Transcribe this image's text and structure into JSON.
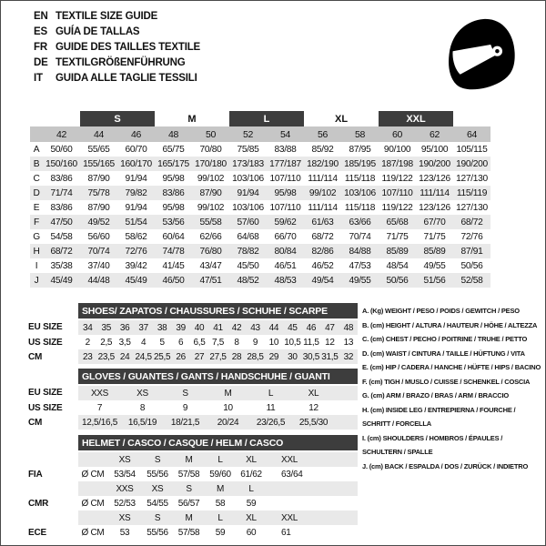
{
  "header": {
    "languages": [
      {
        "code": "EN",
        "text": "TEXTILE SIZE GUIDE"
      },
      {
        "code": "ES",
        "text": "GUÍA DE TALLAS"
      },
      {
        "code": "FR",
        "text": "GUIDE DES TAILLES TEXTILE"
      },
      {
        "code": "DE",
        "text": "TEXTILGRÖßENFÜHRUNG"
      },
      {
        "code": "IT",
        "text": "GUIDA ALLE TAGLIE TESSILI"
      }
    ],
    "helmet_icon": "full-face-racing-helmet"
  },
  "colors": {
    "dark_bar": "#3d3d3d",
    "number_band": "#c6c6c6",
    "row_shade": "#e9e9e9"
  },
  "main_table": {
    "size_groups": [
      "S",
      "M",
      "L",
      "XL",
      "XXL"
    ],
    "columns": [
      "42",
      "44",
      "46",
      "48",
      "50",
      "52",
      "54",
      "56",
      "58",
      "60",
      "62",
      "64"
    ],
    "rows": [
      {
        "label": "A",
        "shade": false,
        "values": [
          "50/60",
          "55/65",
          "60/70",
          "65/75",
          "70/80",
          "75/85",
          "83/88",
          "85/92",
          "87/95",
          "90/100",
          "95/100",
          "105/115"
        ]
      },
      {
        "label": "B",
        "shade": true,
        "values": [
          "150/160",
          "155/165",
          "160/170",
          "165/175",
          "170/180",
          "173/183",
          "177/187",
          "182/190",
          "185/195",
          "187/198",
          "190/200",
          "190/200"
        ]
      },
      {
        "label": "C",
        "shade": false,
        "values": [
          "83/86",
          "87/90",
          "91/94",
          "95/98",
          "99/102",
          "103/106",
          "107/110",
          "111/114",
          "115/118",
          "119/122",
          "123/126",
          "127/130"
        ]
      },
      {
        "label": "D",
        "shade": true,
        "values": [
          "71/74",
          "75/78",
          "79/82",
          "83/86",
          "87/90",
          "91/94",
          "95/98",
          "99/102",
          "103/106",
          "107/110",
          "111/114",
          "115/119"
        ]
      },
      {
        "label": "E",
        "shade": false,
        "values": [
          "83/86",
          "87/90",
          "91/94",
          "95/98",
          "99/102",
          "103/106",
          "107/110",
          "111/114",
          "115/118",
          "119/122",
          "123/126",
          "127/130"
        ]
      },
      {
        "label": "F",
        "shade": true,
        "values": [
          "47/50",
          "49/52",
          "51/54",
          "53/56",
          "55/58",
          "57/60",
          "59/62",
          "61/63",
          "63/66",
          "65/68",
          "67/70",
          "68/72"
        ]
      },
      {
        "label": "G",
        "shade": false,
        "values": [
          "54/58",
          "56/60",
          "58/62",
          "60/64",
          "62/66",
          "64/68",
          "66/70",
          "68/72",
          "70/74",
          "71/75",
          "71/75",
          "72/76"
        ]
      },
      {
        "label": "H",
        "shade": true,
        "values": [
          "68/72",
          "70/74",
          "72/76",
          "74/78",
          "76/80",
          "78/82",
          "80/84",
          "82/86",
          "84/88",
          "85/89",
          "85/89",
          "87/91"
        ]
      },
      {
        "label": "I",
        "shade": false,
        "values": [
          "35/38",
          "37/40",
          "39/42",
          "41/45",
          "43/47",
          "45/50",
          "46/51",
          "46/52",
          "47/53",
          "48/54",
          "49/55",
          "50/56"
        ]
      },
      {
        "label": "J",
        "shade": true,
        "values": [
          "45/49",
          "44/48",
          "45/49",
          "46/50",
          "47/51",
          "48/52",
          "48/53",
          "49/54",
          "49/55",
          "50/56",
          "51/56",
          "52/58"
        ]
      }
    ]
  },
  "shoes": {
    "title": "SHOES/ ZAPATOS / CHAUSSURES / SCHUHE / SCARPE",
    "rows": [
      {
        "label": "EU SIZE",
        "shade": true,
        "values": [
          "34",
          "35",
          "36",
          "37",
          "38",
          "39",
          "40",
          "41",
          "42",
          "43",
          "44",
          "45",
          "46",
          "47",
          "48"
        ]
      },
      {
        "label": "US SIZE",
        "shade": false,
        "values": [
          "2",
          "2,5",
          "3,5",
          "4",
          "5",
          "6",
          "6,5",
          "7,5",
          "8",
          "9",
          "10",
          "10,5",
          "11,5",
          "12",
          "13"
        ]
      },
      {
        "label": "CM",
        "shade": true,
        "values": [
          "23",
          "23,5",
          "24",
          "24,5",
          "25,5",
          "26",
          "27",
          "27,5",
          "28",
          "28,5",
          "29",
          "30",
          "30,5",
          "31,5",
          "32"
        ]
      }
    ]
  },
  "gloves": {
    "title": "GLOVES / GUANTES / GANTS / HANDSCHUHE / GUANTI",
    "rows": [
      {
        "label": "EU SIZE",
        "shade": true,
        "values": [
          "XXS",
          "XS",
          "S",
          "M",
          "L",
          "XL"
        ]
      },
      {
        "label": "US SIZE",
        "shade": false,
        "values": [
          "7",
          "8",
          "9",
          "10",
          "11",
          "12"
        ]
      },
      {
        "label": "CM",
        "shade": true,
        "values": [
          "12,5/16,5",
          "16,5/19",
          "18/21,5",
          "20/24",
          "23/26,5",
          "25,5/30"
        ]
      }
    ]
  },
  "helmet": {
    "title": "HELMET / CASCO / CASQUE / HELM / CASCO",
    "rows": [
      {
        "label": "",
        "shade": true,
        "values": [
          "",
          "XS",
          "S",
          "M",
          "L",
          "XL",
          "XXL"
        ]
      },
      {
        "label": "FIA",
        "shade": false,
        "values": [
          "Ø CM",
          "53/54",
          "55/56",
          "57/58",
          "59/60",
          "61/62",
          "63/64"
        ]
      },
      {
        "label": "",
        "shade": true,
        "values": [
          "",
          "XXS",
          "XS",
          "S",
          "M",
          "L",
          ""
        ]
      },
      {
        "label": "CMR",
        "shade": false,
        "values": [
          "Ø CM",
          "52/53",
          "54/55",
          "56/57",
          "58",
          "59",
          ""
        ]
      },
      {
        "label": "",
        "shade": true,
        "values": [
          "",
          "XS",
          "S",
          "M",
          "L",
          "XL",
          "XXL"
        ]
      },
      {
        "label": "ECE",
        "shade": false,
        "values": [
          "Ø CM",
          "53",
          "55/56",
          "57/58",
          "59",
          "60",
          "61"
        ]
      }
    ]
  },
  "legend": {
    "items": [
      "A. (Kg) WEIGHT / PESO / POIDS / GEWITCH / PESO",
      "B. (cm) HEIGHT / ALTURA / HAUTEUR / HÖHE / ALTEZZA",
      "C. (cm) CHEST / PECHO / POITRINE / TRUHE / PETTO",
      "D. (cm) WAIST / CINTURA / TAILLE / HÜFTUNG / VITA",
      "E. (cm) HIP / CADERA / HANCHE / HÜFTE / HIPS / BACINO",
      "F. (cm) TIGH / MUSLO / CUISSE / SCHENKEL / COSCIA",
      "G. (cm) ARM / BRAZO / BRAS / ARM / BRACCIO",
      "H. (cm) INSIDE LEG / ENTREPIERNA / FOURCHE /\nSCHRITT / FORCELLA",
      "I. (cm) SHOULDERS / HOMBROS / ÉPAULES /\nSCHULTERN / SPALLE",
      "J. (cm) BACK / ESPALDA / DOS / ZURÜCK / INDIETRO"
    ]
  }
}
